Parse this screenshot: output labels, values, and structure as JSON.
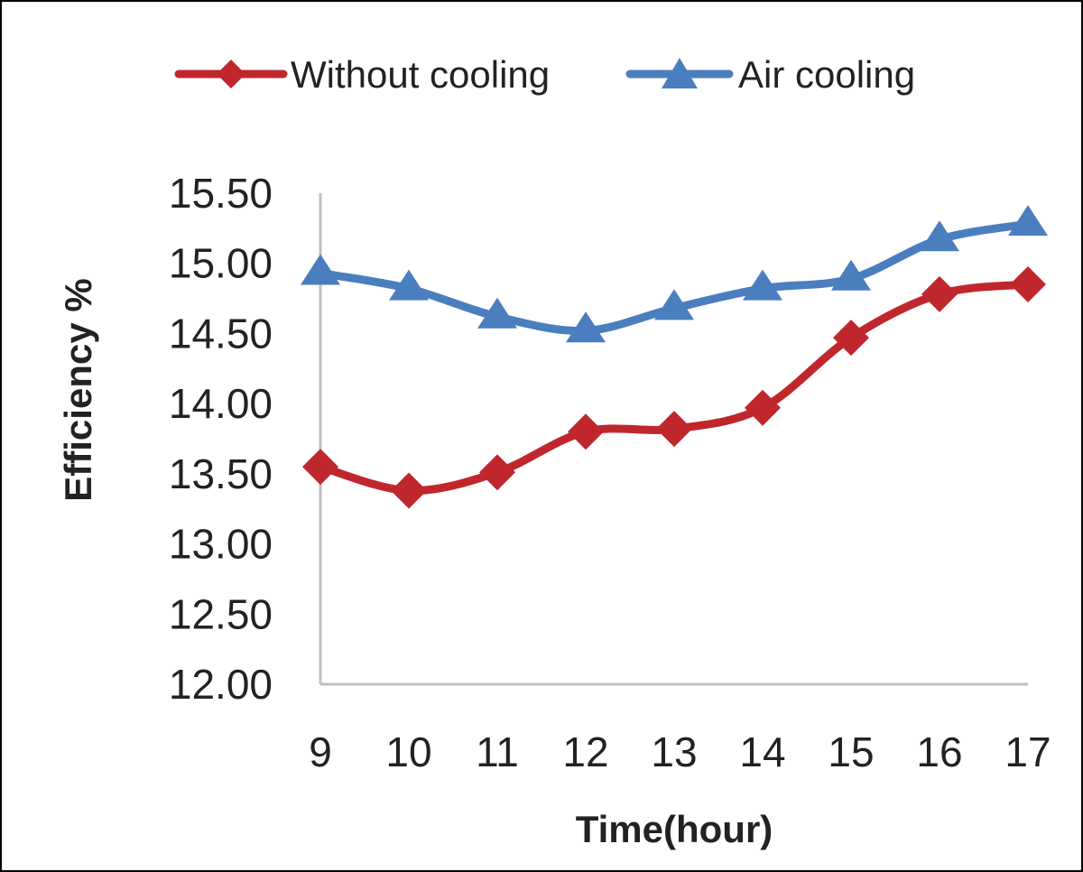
{
  "chart_data": {
    "type": "line",
    "title": "",
    "xlabel": "Time(hour)",
    "ylabel": "Efficiency %",
    "categories": [
      "9",
      "10",
      "11",
      "12",
      "13",
      "14",
      "15",
      "16",
      "17"
    ],
    "x": [
      9,
      10,
      11,
      12,
      13,
      14,
      15,
      16,
      17
    ],
    "ylim": [
      12.0,
      15.5
    ],
    "yticks": [
      "12.00",
      "12.50",
      "13.00",
      "13.50",
      "14.00",
      "14.50",
      "15.00",
      "15.50"
    ],
    "grid": false,
    "legend_position": "top",
    "series": [
      {
        "name": "Without cooling",
        "color": "#c0272d",
        "marker": "diamond",
        "values": [
          13.55,
          13.38,
          13.51,
          13.8,
          13.82,
          13.97,
          14.47,
          14.78,
          14.85
        ]
      },
      {
        "name": "Air cooling",
        "color": "#4a7ebf",
        "marker": "triangle",
        "values": [
          14.93,
          14.82,
          14.62,
          14.52,
          14.68,
          14.82,
          14.89,
          15.17,
          15.28
        ]
      }
    ]
  }
}
